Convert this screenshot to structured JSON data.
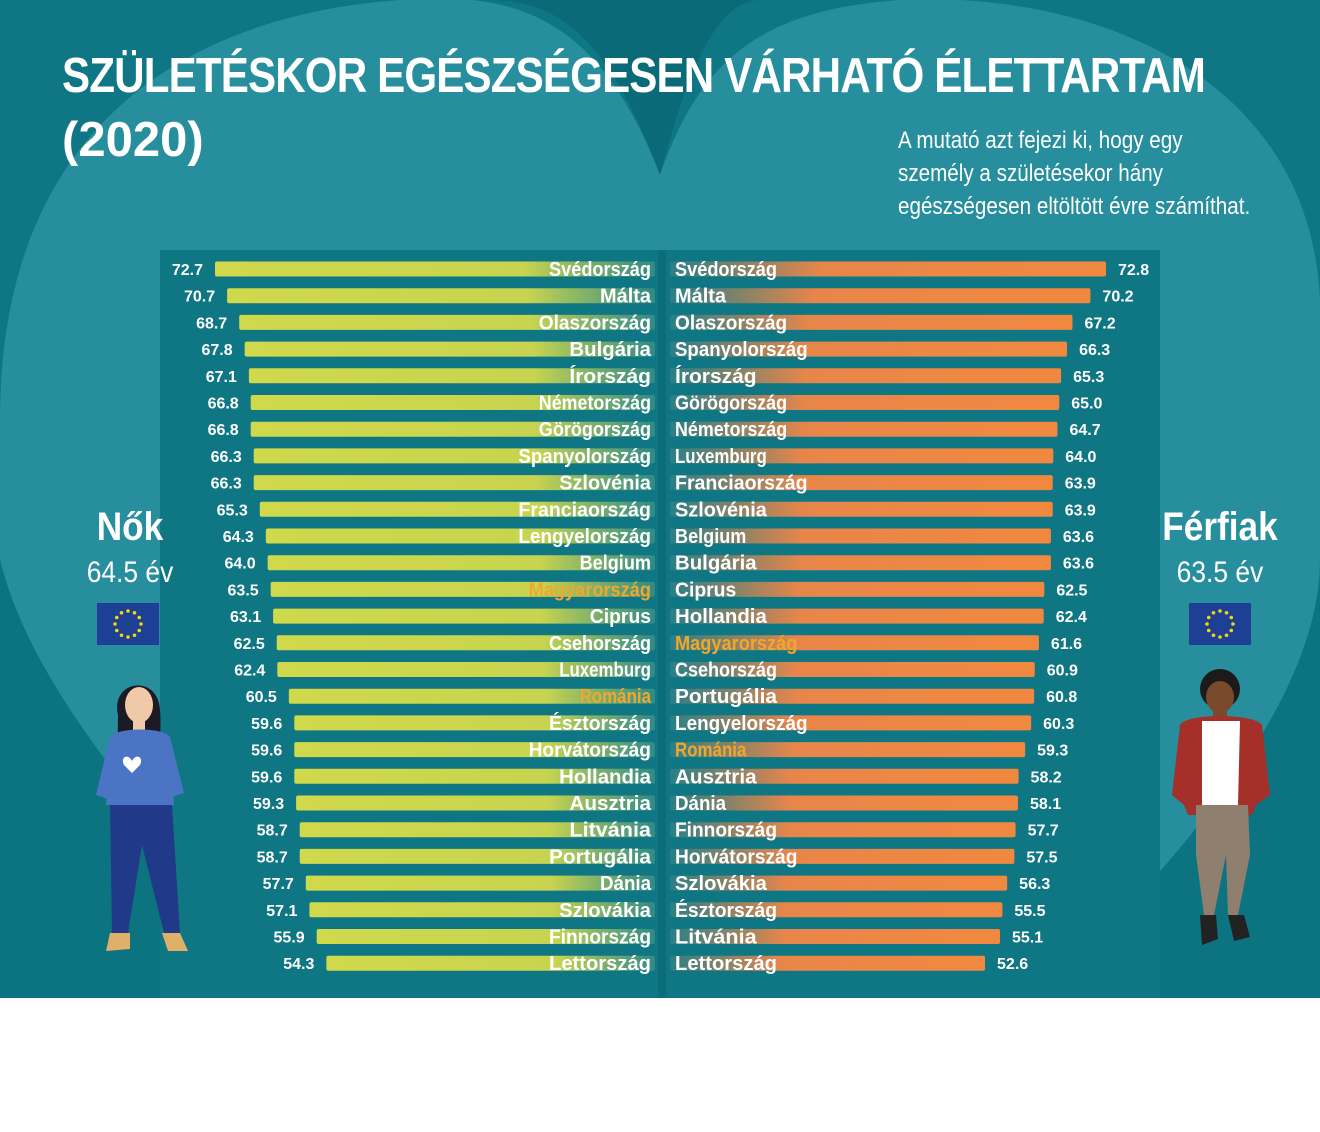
{
  "title": {
    "line1": "SZÜLETÉSKOR EGÉSZSÉGESEN VÁRHATÓ ÉLETTARTAM",
    "line2": "(2020)"
  },
  "subtitle": "A mutató azt fejezi ki, hogy egy személy a születésekor hány egészségesen eltöltött évre számíthat.",
  "women": {
    "label": "Nők",
    "eu_average": "64.5 év"
  },
  "men": {
    "label": "Férfiak",
    "eu_average": "63.5 év"
  },
  "icons": {
    "eu_flag": "eu-flag-icon",
    "woman": "woman-figure-icon",
    "man": "man-figure-icon"
  },
  "colors": {
    "background": "#0e7684",
    "women_bar": "#cbd64c",
    "men_bar": "#ef8844",
    "highlight": "#f0a72e",
    "text": "#ffffff"
  },
  "chart_data": [
    {
      "type": "bar",
      "orientation": "horizontal",
      "direction": "right-to-left",
      "title": "Nők",
      "categories": [
        "Svédország",
        "Málta",
        "Olaszország",
        "Bulgária",
        "Írország",
        "Németország",
        "Görögország",
        "Spanyolország",
        "Szlovénia",
        "Franciaország",
        "Lengyelország",
        "Belgium",
        "Magyarország",
        "Ciprus",
        "Csehország",
        "Luxemburg",
        "Románia",
        "Észtország",
        "Horvátország",
        "Hollandia",
        "Ausztria",
        "Litvánia",
        "Portugália",
        "Dánia",
        "Szlovákia",
        "Finnország",
        "Lettország"
      ],
      "values": [
        72.7,
        70.7,
        68.7,
        67.8,
        67.1,
        66.8,
        66.8,
        66.3,
        66.3,
        65.3,
        64.3,
        64.0,
        63.5,
        63.1,
        62.5,
        62.4,
        60.5,
        59.6,
        59.6,
        59.6,
        59.3,
        58.7,
        58.7,
        57.7,
        57.1,
        55.9,
        54.3
      ],
      "labels": [
        "72.7",
        "70.7",
        "68.7",
        "67.8",
        "67.1",
        "66.8",
        "66.8",
        "66.3",
        "66.3",
        "65.3",
        "64.3",
        "64.0",
        "63.5",
        "63.1",
        "62.5",
        "62.4",
        "60.5",
        "59.6",
        "59.6",
        "59.6",
        "59.3",
        "58.7",
        "58.7",
        "57.7",
        "57.1",
        "55.9",
        "54.3"
      ],
      "highlighted": [
        "Magyarország",
        "Románia"
      ],
      "xlim": [
        0,
        72.7
      ],
      "color": "#cbd64c"
    },
    {
      "type": "bar",
      "orientation": "horizontal",
      "direction": "left-to-right",
      "title": "Férfiak",
      "categories": [
        "Svédország",
        "Málta",
        "Olaszország",
        "Spanyolország",
        "Írország",
        "Görögország",
        "Németország",
        "Luxemburg",
        "Franciaország",
        "Szlovénia",
        "Belgium",
        "Bulgária",
        "Ciprus",
        "Hollandia",
        "Magyarország",
        "Csehország",
        "Portugália",
        "Lengyelország",
        "Románia",
        "Ausztria",
        "Dánia",
        "Finnország",
        "Horvátország",
        "Szlovákia",
        "Észtország",
        "Litvánia",
        "Lettország"
      ],
      "values": [
        72.8,
        70.2,
        67.2,
        66.3,
        65.3,
        65.0,
        64.7,
        64.0,
        63.9,
        63.9,
        63.6,
        63.6,
        62.5,
        62.4,
        61.6,
        60.9,
        60.8,
        60.3,
        59.3,
        58.2,
        58.1,
        57.7,
        57.5,
        56.3,
        55.5,
        55.1,
        52.6
      ],
      "labels": [
        "72.8",
        "70.2",
        "67.2",
        "66.3",
        "65.3",
        "65.0",
        "64.7",
        "64.0",
        "63.9",
        "63.9",
        "63.6",
        "63.6",
        "62.5",
        "62.4",
        "61.6",
        "60.9",
        "60.8",
        "60.3",
        "59.3",
        "58.2",
        "58.1",
        "57.7",
        "57.5",
        "56.3",
        "55.5",
        "55.1",
        "52.6"
      ],
      "highlighted": [
        "Magyarország",
        "Románia"
      ],
      "xlim": [
        0,
        72.8
      ],
      "color": "#ef8844"
    }
  ]
}
